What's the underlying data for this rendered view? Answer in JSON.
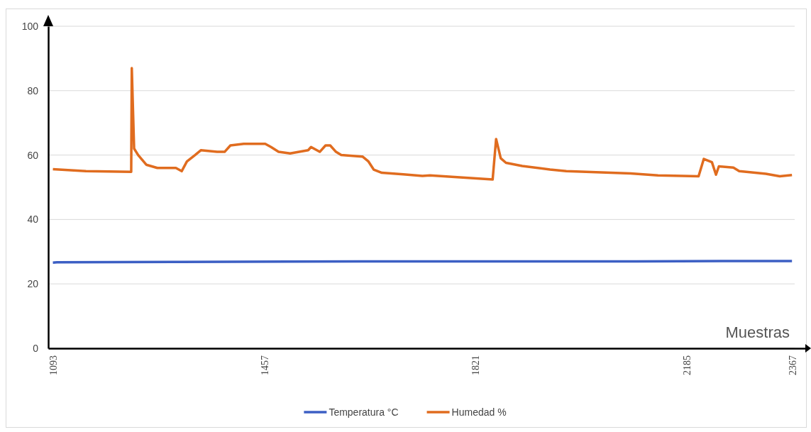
{
  "chart_data": {
    "type": "line",
    "xlabel": "Muestras",
    "xlim": [
      1085,
      2390
    ],
    "xticks": [
      1093,
      1457,
      1821,
      2185,
      2367
    ],
    "ylim": [
      0,
      100
    ],
    "yticks": [
      0,
      20,
      40,
      60,
      80,
      100
    ],
    "grid": "y",
    "legend": "bottom",
    "marker": "none",
    "line_style": "solid",
    "series": [
      {
        "name": "Temperatura °C",
        "color": "#3c5fc4",
        "x": [
          1093,
          1100,
          1300,
          1500,
          1700,
          1900,
          2100,
          2300,
          2367
        ],
        "values": [
          26.6,
          26.7,
          26.8,
          26.9,
          27.0,
          27.0,
          27.0,
          27.1,
          27.1
        ]
      },
      {
        "name": "Humedad %",
        "color": "#e06c1f",
        "x": [
          1093,
          1150,
          1228,
          1229,
          1233,
          1240,
          1254,
          1273,
          1305,
          1315,
          1324,
          1338,
          1348,
          1376,
          1389,
          1399,
          1422,
          1459,
          1469,
          1482,
          1502,
          1533,
          1538,
          1553,
          1563,
          1571,
          1581,
          1590,
          1627,
          1637,
          1646,
          1660,
          1697,
          1730,
          1743,
          1851,
          1857,
          1865,
          1874,
          1902,
          1950,
          1978,
          2089,
          2136,
          2206,
          2215,
          2229,
          2236,
          2241,
          2266,
          2276,
          2322,
          2346,
          2367
        ],
        "values": [
          55.6,
          55,
          54.8,
          87,
          62,
          60,
          57,
          56,
          56,
          55,
          58,
          60,
          61.5,
          61,
          61,
          63,
          63.5,
          63.5,
          62.5,
          61,
          60.5,
          61.5,
          62.5,
          61,
          63,
          63,
          61,
          60,
          59.5,
          58,
          55.5,
          54.5,
          54,
          53.5,
          53.7,
          52.4,
          65,
          59,
          57.6,
          56.6,
          55.5,
          55,
          54.3,
          53.7,
          53.4,
          58.8,
          57.8,
          53.9,
          56.5,
          56.1,
          55,
          54.2,
          53.4,
          53.8
        ]
      }
    ]
  }
}
